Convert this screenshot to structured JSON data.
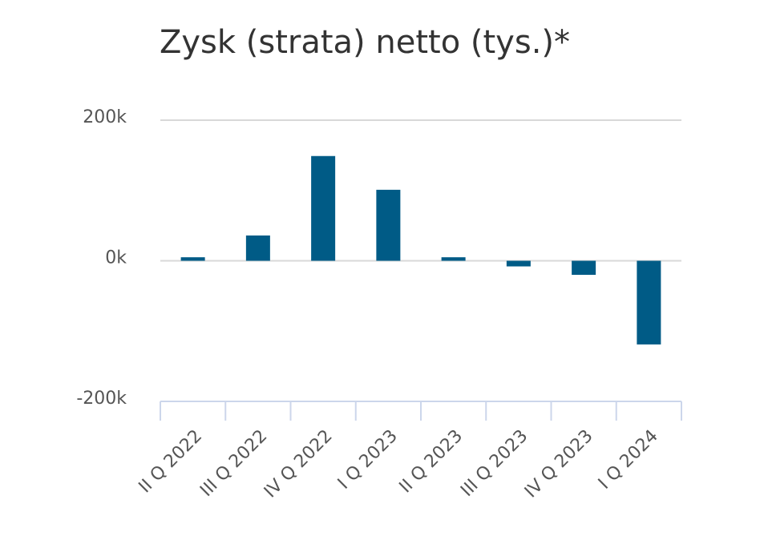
{
  "chart_data": {
    "type": "bar",
    "title": "Zysk (strata) netto (tys.)*",
    "categories": [
      "II Q 2022",
      "III Q 2022",
      "IV Q 2022",
      "I Q 2023",
      "II Q 2023",
      "III Q 2023",
      "IV Q 2023",
      "I Q 2024"
    ],
    "values": [
      5000,
      36000,
      149000,
      101000,
      5000,
      -8000,
      -20000,
      -119000
    ],
    "color": "#005b86",
    "ylim": [
      -200000,
      200000
    ],
    "yticks": [
      {
        "value": -200000,
        "label": "-200k"
      },
      {
        "value": 0,
        "label": "0k"
      },
      {
        "value": 200000,
        "label": "200k"
      }
    ],
    "grid": true
  }
}
